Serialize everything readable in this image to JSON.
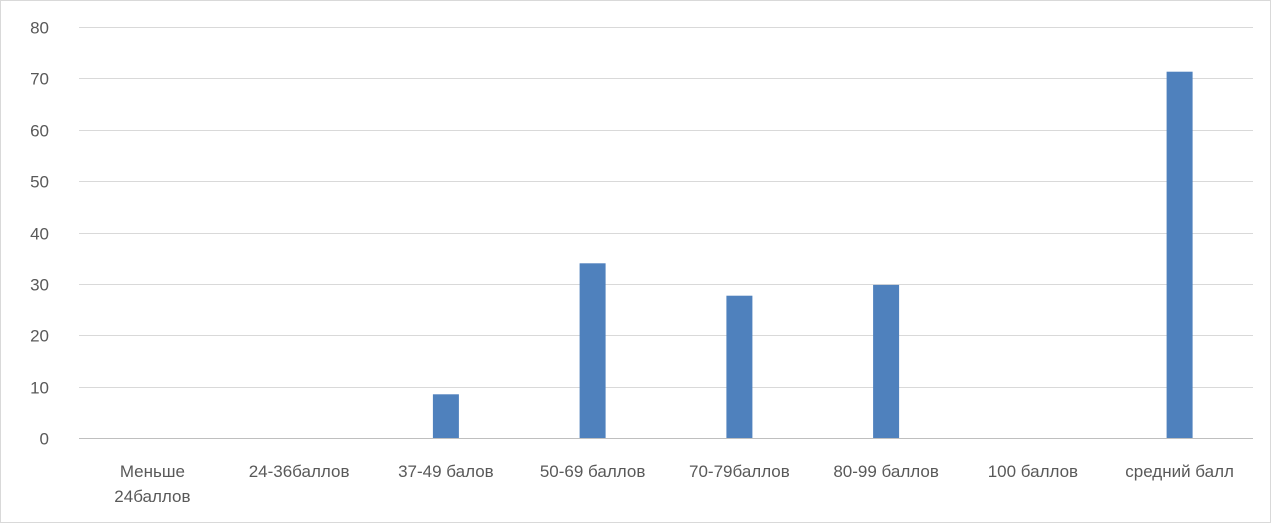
{
  "chart_data": {
    "type": "bar",
    "categories": [
      [
        "Меньше",
        "24баллов"
      ],
      [
        "24-36баллов"
      ],
      [
        "37-49 балов"
      ],
      [
        "50-69 баллов"
      ],
      [
        "70-79баллов"
      ],
      [
        "80-99 баллов"
      ],
      [
        "100 баллов"
      ],
      [
        "средний балл"
      ]
    ],
    "values": [
      0,
      0,
      8.5,
      34,
      27.7,
      29.8,
      0,
      71.3
    ],
    "ylim": [
      0,
      80
    ],
    "yticks": [
      0,
      10,
      20,
      30,
      40,
      50,
      60,
      70,
      80
    ],
    "title": "",
    "xlabel": "",
    "ylabel": "",
    "grid": true,
    "legend": "none",
    "colors": {
      "bar": "#4f81bd",
      "grid": "#d9d9d9",
      "axis": "#bfbfbf",
      "text": "#595959"
    }
  }
}
